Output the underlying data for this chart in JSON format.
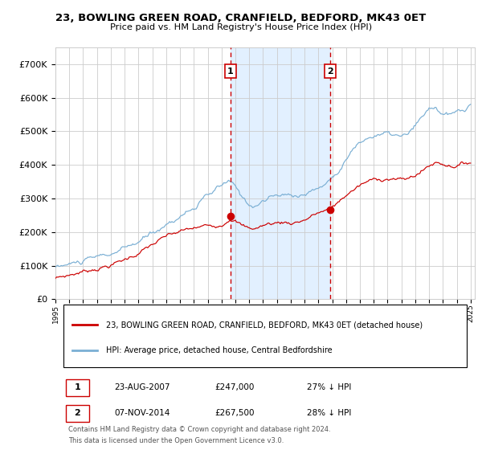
{
  "title": "23, BOWLING GREEN ROAD, CRANFIELD, BEDFORD, MK43 0ET",
  "subtitle": "Price paid vs. HM Land Registry's House Price Index (HPI)",
  "legend_line1": "23, BOWLING GREEN ROAD, CRANFIELD, BEDFORD, MK43 0ET (detached house)",
  "legend_line2": "HPI: Average price, detached house, Central Bedfordshire",
  "ann1_label": "1",
  "ann1_date": "23-AUG-2007",
  "ann1_price": "£247,000",
  "ann1_hpi": "27% ↓ HPI",
  "ann2_label": "2",
  "ann2_date": "07-NOV-2014",
  "ann2_price": "£267,500",
  "ann2_hpi": "28% ↓ HPI",
  "footnote_line1": "Contains HM Land Registry data © Crown copyright and database right 2024.",
  "footnote_line2": "This data is licensed under the Open Government Licence v3.0.",
  "red_color": "#cc0000",
  "blue_color": "#7aafd4",
  "blue_fill": "#ddeeff",
  "vline_color": "#cc0000",
  "grid_color": "#cccccc",
  "bg_color": "#ffffff",
  "ylim_min": 0,
  "ylim_max": 750000,
  "yticks": [
    0,
    100000,
    200000,
    300000,
    400000,
    500000,
    600000,
    700000
  ],
  "ytick_labels": [
    "£0",
    "£100K",
    "£200K",
    "£300K",
    "£400K",
    "£500K",
    "£600K",
    "£700K"
  ],
  "sale1_year": 2007.647,
  "sale1_value": 247000,
  "sale2_year": 2014.847,
  "sale2_value": 267500,
  "hpi_waypoints_x": [
    1995,
    1996,
    1997,
    1998,
    1999,
    2000,
    2001,
    2002,
    2003,
    2004,
    2005,
    2006,
    2007.0,
    2007.5,
    2008.0,
    2008.5,
    2009.0,
    2009.5,
    2010.0,
    2010.5,
    2011.0,
    2011.5,
    2012.0,
    2012.5,
    2013.0,
    2013.5,
    2014.0,
    2014.5,
    2015.0,
    2015.5,
    2016.0,
    2016.5,
    2017.0,
    2017.5,
    2018.0,
    2018.5,
    2019.0,
    2019.5,
    2020.0,
    2020.5,
    2021.0,
    2021.5,
    2022.0,
    2022.5,
    2023.0,
    2023.5,
    2024.0,
    2024.5,
    2025.0
  ],
  "hpi_waypoints_y": [
    95000,
    103000,
    112000,
    122000,
    133000,
    148000,
    168000,
    195000,
    222000,
    250000,
    272000,
    305000,
    335000,
    348000,
    330000,
    300000,
    284000,
    280000,
    293000,
    302000,
    306000,
    308000,
    308000,
    311000,
    315000,
    322000,
    332000,
    342000,
    365000,
    390000,
    420000,
    448000,
    465000,
    478000,
    487000,
    492000,
    490000,
    487000,
    480000,
    488000,
    510000,
    535000,
    562000,
    570000,
    548000,
    545000,
    552000,
    560000,
    575000
  ],
  "red_waypoints_x": [
    1995,
    1996,
    1997,
    1998,
    1999,
    2000,
    2001,
    2002,
    2003,
    2004,
    2005,
    2006,
    2007.0,
    2007.647,
    2008.0,
    2008.5,
    2009.0,
    2009.5,
    2010.0,
    2010.5,
    2011.0,
    2011.5,
    2012.0,
    2012.5,
    2013.0,
    2013.5,
    2014.0,
    2014.847,
    2015.5,
    2016.0,
    2016.5,
    2017.0,
    2017.5,
    2018.0,
    2018.5,
    2019.0,
    2019.5,
    2020.0,
    2020.5,
    2021.0,
    2021.5,
    2022.0,
    2022.5,
    2023.0,
    2023.5,
    2024.0,
    2024.5,
    2025.0
  ],
  "red_waypoints_y": [
    62000,
    72000,
    83000,
    93000,
    102000,
    118000,
    138000,
    162000,
    185000,
    200000,
    210000,
    218000,
    225000,
    247000,
    238000,
    220000,
    210000,
    212000,
    220000,
    225000,
    228000,
    230000,
    228000,
    232000,
    238000,
    248000,
    258000,
    267500,
    290000,
    310000,
    325000,
    338000,
    348000,
    355000,
    358000,
    362000,
    360000,
    355000,
    358000,
    370000,
    382000,
    398000,
    408000,
    405000,
    400000,
    400000,
    403000,
    410000
  ]
}
